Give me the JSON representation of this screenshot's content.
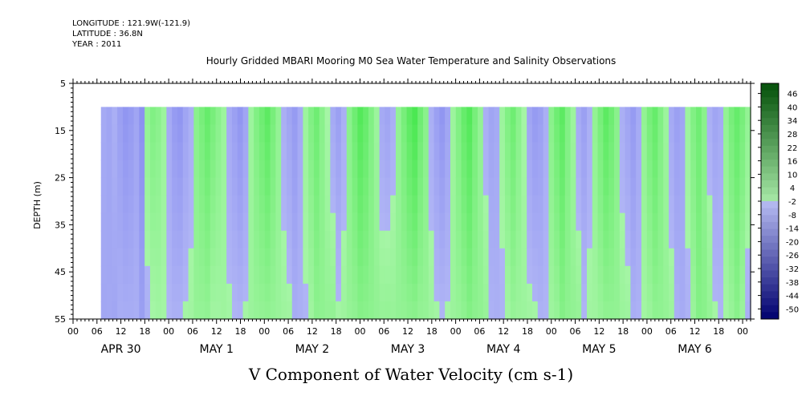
{
  "header": {
    "longitude": "LONGITUDE : 121.9W(-121.9)",
    "latitude": "LATITUDE : 36.8N",
    "year": "YEAR : 2011"
  },
  "chart_data": {
    "type": "heatmap",
    "title": "Hourly Gridded MBARI Mooring M0 Sea Water Temperature and Salinity Observations",
    "xlabel": "V Component of Water Velocity (cm s-1)",
    "ylabel": "DEPTH (m)",
    "y_ticks": [
      5,
      15,
      25,
      35,
      45,
      55
    ],
    "ylim": [
      55,
      5
    ],
    "x_hour_ticks": [
      "00",
      "06",
      "12",
      "18",
      "00",
      "06",
      "12",
      "18",
      "00",
      "06",
      "12",
      "18",
      "00",
      "06",
      "12",
      "18",
      "00",
      "06",
      "12",
      "18",
      "00",
      "06",
      "12",
      "18",
      "00",
      "06",
      "12",
      "18",
      "00"
    ],
    "x_days": [
      "APR 30",
      "MAY  1",
      "MAY  2",
      "MAY  3",
      "MAY  4",
      "MAY  5",
      "MAY  6"
    ],
    "x_range_hours": [
      0,
      170
    ],
    "data_start_hour": 7,
    "data_top_depth": 10,
    "colorbar": {
      "levels": [
        46,
        40,
        34,
        28,
        22,
        16,
        10,
        4,
        -2,
        -8,
        -14,
        -20,
        -26,
        -32,
        -38,
        -44,
        -50
      ],
      "range": [
        -50,
        52
      ]
    },
    "column_velocity_profile": [
      -4,
      -6,
      -2,
      -8,
      -12,
      -10,
      -6,
      -14,
      4,
      8,
      6,
      2,
      -4,
      -10,
      -12,
      -6,
      -2,
      6,
      10,
      14,
      10,
      6,
      2,
      -4,
      -8,
      -12,
      -6,
      2,
      8,
      12,
      16,
      10,
      4,
      -2,
      -6,
      -10,
      -4,
      2,
      8,
      12,
      6,
      0,
      -4,
      -8,
      -2,
      6,
      12,
      18,
      14,
      8,
      2,
      -4,
      -6,
      -2,
      4,
      10,
      16,
      20,
      12,
      6,
      -2,
      -8,
      -12,
      -6,
      2,
      8,
      14,
      18,
      10,
      4,
      -2,
      -6,
      -4,
      2,
      8,
      12,
      6,
      0,
      -6,
      -10,
      -8,
      -2,
      6,
      12,
      16,
      8,
      2,
      -4,
      -8,
      -2,
      4,
      10,
      16,
      12,
      6,
      -2,
      -6,
      -10,
      -4,
      4,
      10,
      14,
      8,
      2,
      -4,
      -8,
      -6,
      2,
      8,
      12,
      6,
      -2,
      -6,
      -4,
      4,
      10,
      14,
      10,
      4
    ]
  }
}
